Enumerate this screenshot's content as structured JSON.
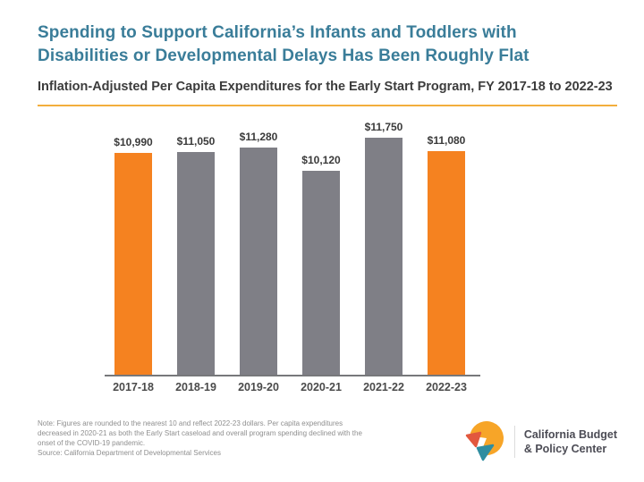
{
  "header": {
    "title_line1": "Spending to Support California’s Infants and Toddlers with",
    "title_line2": "Disabilities or Developmental Delays Has Been Roughly Flat",
    "subtitle": "Inflation-Adjusted Per Capita Expenditures for the Early Start Program, FY 2017-18 to 2022-23"
  },
  "chart_data": {
    "type": "bar",
    "title": "Spending to Support California’s Infants and Toddlers with Disabilities or Developmental Delays Has Been Roughly Flat",
    "subtitle": "Inflation-Adjusted Per Capita Expenditures for the Early Start Program, FY 2017-18 to 2022-23",
    "categories": [
      "2017-18",
      "2018-19",
      "2019-20",
      "2020-21",
      "2021-22",
      "2022-23"
    ],
    "values": [
      10990,
      11050,
      11280,
      10120,
      11750,
      11080
    ],
    "value_labels": [
      "$10,990",
      "$11,050",
      "$11,280",
      "$10,120",
      "$11,750",
      "$11,080"
    ],
    "xlabel": "",
    "ylabel": "",
    "ylim": [
      0,
      11750
    ],
    "grid": false,
    "legend": false,
    "y_axis_ticks_shown": false,
    "highlight_indices": [
      0,
      5
    ],
    "colors": {
      "highlight_bar": "#F58220",
      "default_bar": "#7F7F86",
      "axis_line": "#77787B",
      "value_label": "#3A3A3A",
      "category_label": "#4A4A4A"
    }
  },
  "theme": {
    "title_color": "#3A7D99",
    "accent_rule_color": "#F3AE3D",
    "background": "#FFFFFF"
  },
  "footer": {
    "note_lines": [
      "Note: Figures are rounded to the nearest 10 and reflect 2022-23 dollars. Per capita expenditures",
      "decreased in 2020-21 as both the Early Start caseload and overall program spending declined with the",
      "onset of the COVID-19 pandemic."
    ],
    "source": "Source: California Department of Developmental Services",
    "brand": {
      "line1": "California Budget",
      "line2": "& Policy Center",
      "logo_colors": {
        "circle": "#F7A528",
        "red_triangle": "#E2583E",
        "teal_triangle": "#2F8DA0"
      }
    }
  }
}
